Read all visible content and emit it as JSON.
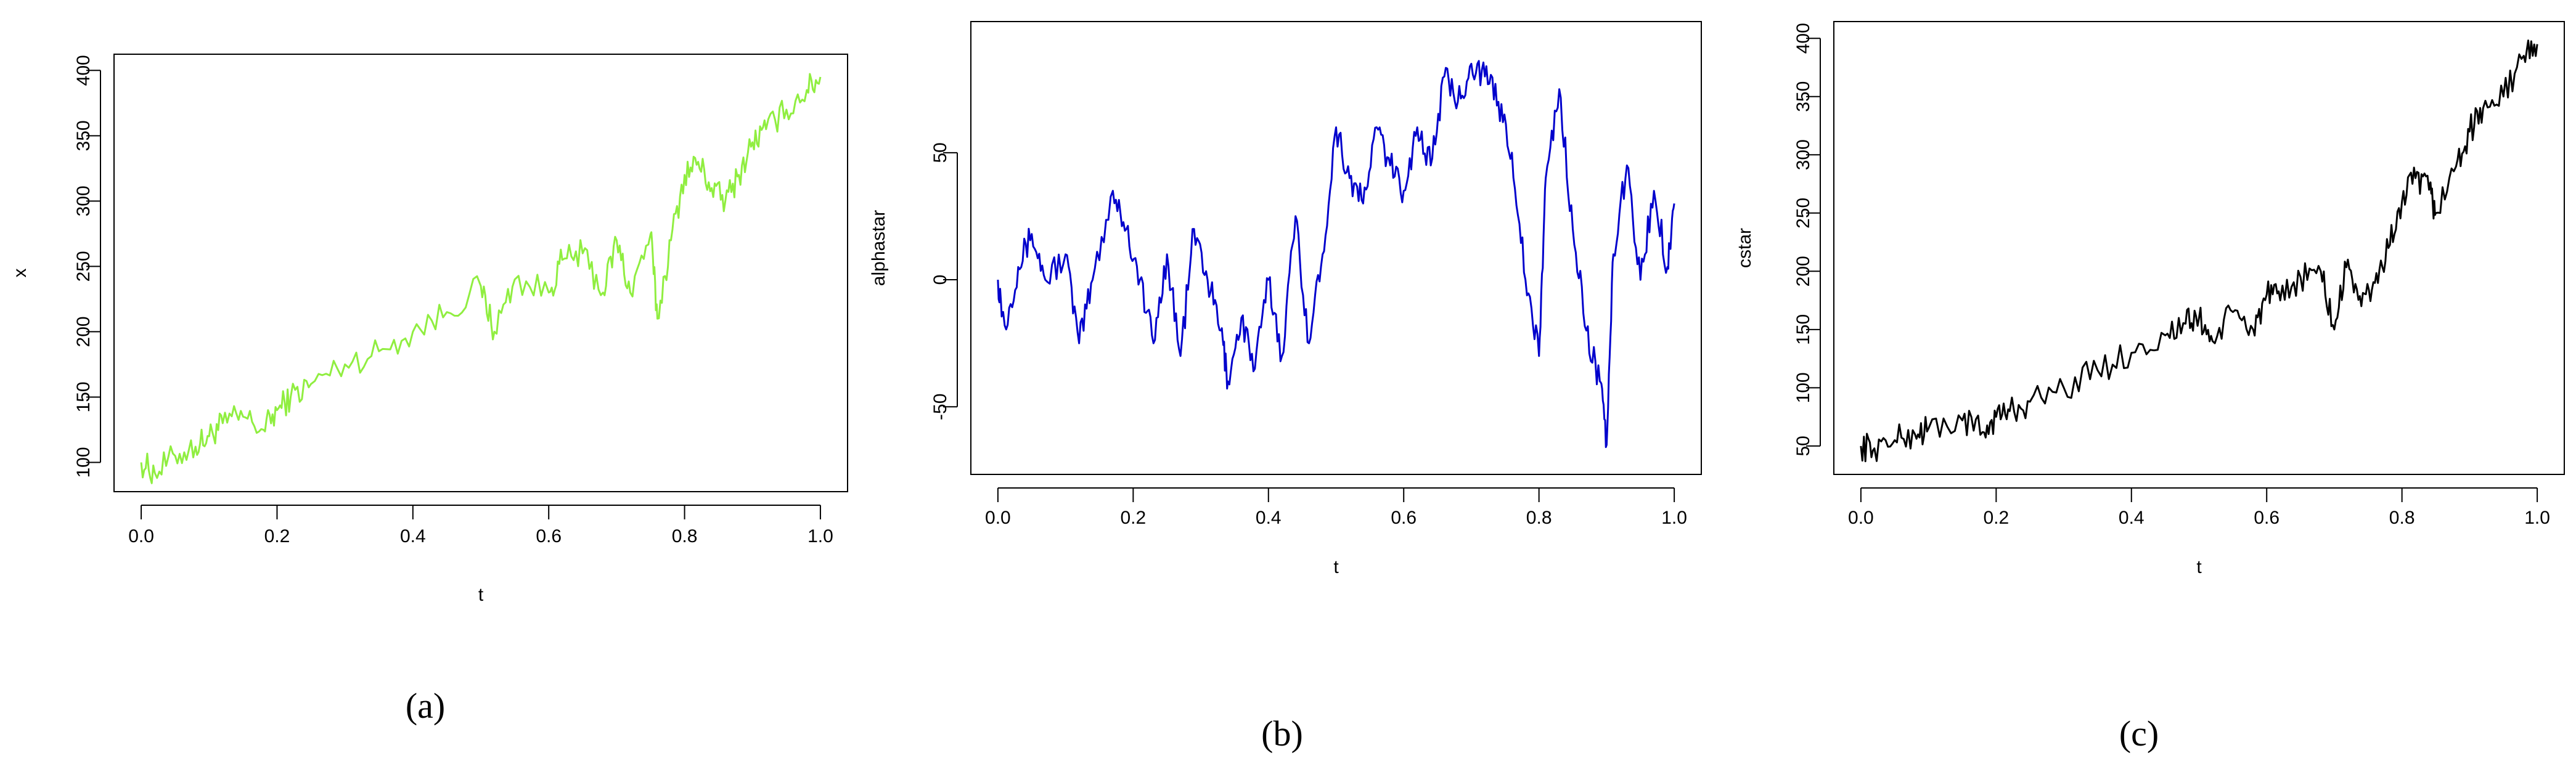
{
  "chart_data": [
    {
      "type": "line",
      "xlabel": "t",
      "ylabel": "x",
      "caption": "(a)",
      "color": "#90EE40",
      "xlim": [
        0,
        1
      ],
      "ylim": [
        90,
        400
      ],
      "xticks": [
        "0.0",
        "0.2",
        "0.4",
        "0.6",
        "0.8",
        "1.0"
      ],
      "yticks": [
        "100",
        "150",
        "200",
        "250",
        "300",
        "350",
        "400"
      ],
      "series": [
        {
          "x": [
            0.0,
            0.02,
            0.05,
            0.08,
            0.1,
            0.12,
            0.15,
            0.18,
            0.2,
            0.22,
            0.25,
            0.3,
            0.35,
            0.4,
            0.45,
            0.5,
            0.52,
            0.55,
            0.6,
            0.62,
            0.65,
            0.68,
            0.7,
            0.72,
            0.75,
            0.76,
            0.78,
            0.8,
            0.82,
            0.84,
            0.86,
            0.88,
            0.9,
            0.92,
            0.95,
            0.98,
            1.0
          ],
          "y": [
            100,
            92,
            105,
            112,
            120,
            130,
            135,
            125,
            140,
            150,
            160,
            175,
            185,
            200,
            215,
            235,
            200,
            240,
            230,
            255,
            260,
            230,
            270,
            230,
            275,
            210,
            270,
            320,
            330,
            310,
            300,
            320,
            345,
            355,
            370,
            385,
            395
          ]
        }
      ]
    },
    {
      "type": "line",
      "xlabel": "t",
      "ylabel": "alphastar",
      "caption": "(b)",
      "color": "#0000CC",
      "xlim": [
        0,
        1
      ],
      "ylim": [
        -70,
        95
      ],
      "xticks": [
        "0.0",
        "0.2",
        "0.4",
        "0.6",
        "0.8",
        "1.0"
      ],
      "yticks": [
        "-50",
        "0",
        "50"
      ],
      "series": [
        {
          "x": [
            0.0,
            0.01,
            0.03,
            0.05,
            0.07,
            0.1,
            0.12,
            0.14,
            0.17,
            0.19,
            0.21,
            0.23,
            0.25,
            0.27,
            0.29,
            0.31,
            0.33,
            0.34,
            0.36,
            0.38,
            0.4,
            0.42,
            0.44,
            0.46,
            0.48,
            0.5,
            0.52,
            0.54,
            0.56,
            0.58,
            0.6,
            0.62,
            0.64,
            0.66,
            0.68,
            0.7,
            0.72,
            0.74,
            0.76,
            0.78,
            0.8,
            0.81,
            0.83,
            0.85,
            0.87,
            0.89,
            0.9,
            0.91,
            0.93,
            0.95,
            0.97,
            0.99,
            1.0
          ],
          "y": [
            0,
            -18,
            5,
            18,
            0,
            10,
            -25,
            0,
            35,
            20,
            0,
            -25,
            10,
            -30,
            20,
            0,
            -20,
            -40,
            -15,
            -35,
            0,
            -30,
            25,
            -25,
            10,
            60,
            40,
            30,
            60,
            45,
            35,
            60,
            45,
            80,
            70,
            85,
            80,
            70,
            50,
            0,
            -30,
            40,
            75,
            20,
            -20,
            -40,
            -65,
            10,
            45,
            0,
            35,
            5,
            30
          ]
        }
      ]
    },
    {
      "type": "line",
      "xlabel": "t",
      "ylabel": "cstar",
      "caption": "(c)",
      "color": "#000000",
      "xlim": [
        0,
        1
      ],
      "ylim": [
        40,
        400
      ],
      "xticks": [
        "0.0",
        "0.2",
        "0.4",
        "0.6",
        "0.8",
        "1.0"
      ],
      "yticks": [
        "50",
        "100",
        "150",
        "200",
        "250",
        "300",
        "350",
        "400"
      ],
      "series": [
        {
          "x": [
            0.0,
            0.02,
            0.05,
            0.08,
            0.1,
            0.15,
            0.18,
            0.2,
            0.22,
            0.25,
            0.3,
            0.35,
            0.4,
            0.45,
            0.48,
            0.5,
            0.52,
            0.55,
            0.58,
            0.6,
            0.62,
            0.65,
            0.68,
            0.7,
            0.72,
            0.74,
            0.76,
            0.78,
            0.8,
            0.82,
            0.84,
            0.85,
            0.88,
            0.9,
            0.92,
            0.95,
            0.98,
            1.0
          ],
          "y": [
            50,
            48,
            55,
            60,
            65,
            72,
            62,
            75,
            80,
            88,
            100,
            115,
            130,
            145,
            155,
            160,
            140,
            165,
            150,
            180,
            175,
            195,
            200,
            150,
            210,
            170,
            190,
            220,
            260,
            280,
            270,
            250,
            290,
            320,
            340,
            350,
            385,
            395
          ]
        }
      ]
    }
  ]
}
